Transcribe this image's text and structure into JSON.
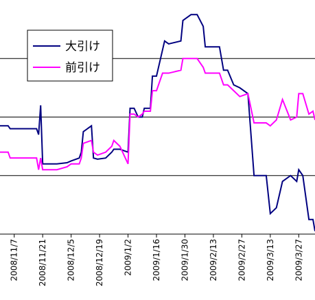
{
  "chart_data": {
    "type": "line",
    "x_tick_labels": [
      "2008/11/7",
      "2008/11/21",
      "2008/12/5",
      "2008/12/19",
      "2009/1/2",
      "2009/1/16",
      "2009/1/30",
      "2009/2/13",
      "2009/2/27",
      "2009/3/13",
      "2009/3/27"
    ],
    "x_start": "2008/10/31",
    "x_end": "2009/4/4",
    "y_range": [
      0,
      4
    ],
    "y_gridlines": [
      1,
      2,
      3
    ],
    "grid": true,
    "legend_position": "top-left",
    "series": [
      {
        "name": "大引け",
        "color": "#000080",
        "points": [
          [
            "2008/10/31",
            1.85
          ],
          [
            "2008/11/4",
            1.85
          ],
          [
            "2008/11/5",
            1.8
          ],
          [
            "2008/11/18",
            1.8
          ],
          [
            "2008/11/19",
            1.7
          ],
          [
            "2008/11/20",
            2.2
          ],
          [
            "2008/11/21",
            1.2
          ],
          [
            "2008/11/28",
            1.2
          ],
          [
            "2008/12/3",
            1.22
          ],
          [
            "2008/12/5",
            1.25
          ],
          [
            "2008/12/9",
            1.3
          ],
          [
            "2008/12/10",
            1.4
          ],
          [
            "2008/12/11",
            1.75
          ],
          [
            "2008/12/15",
            1.85
          ],
          [
            "2008/12/16",
            1.3
          ],
          [
            "2008/12/18",
            1.28
          ],
          [
            "2008/12/22",
            1.3
          ],
          [
            "2008/12/25",
            1.4
          ],
          [
            "2008/12/26",
            1.45
          ],
          [
            "2008/12/29",
            1.45
          ],
          [
            "2009/1/2",
            1.4
          ],
          [
            "2009/1/3",
            2.15
          ],
          [
            "2009/1/5",
            2.15
          ],
          [
            "2009/1/7",
            2.0
          ],
          [
            "2009/1/9",
            2.0
          ],
          [
            "2009/1/10",
            2.15
          ],
          [
            "2009/1/13",
            2.15
          ],
          [
            "2009/1/14",
            2.7
          ],
          [
            "2009/1/16",
            2.7
          ],
          [
            "2009/1/19",
            3.15
          ],
          [
            "2009/1/20",
            3.3
          ],
          [
            "2009/1/22",
            3.25
          ],
          [
            "2009/1/28",
            3.3
          ],
          [
            "2009/1/29",
            3.65
          ],
          [
            "2009/2/2",
            3.75
          ],
          [
            "2009/2/5",
            3.75
          ],
          [
            "2009/2/8",
            3.55
          ],
          [
            "2009/2/9",
            3.2
          ],
          [
            "2009/2/16",
            3.2
          ],
          [
            "2009/2/18",
            2.8
          ],
          [
            "2009/2/20",
            2.8
          ],
          [
            "2009/2/23",
            2.55
          ],
          [
            "2009/2/26",
            2.5
          ],
          [
            "2009/3/2",
            2.4
          ],
          [
            "2009/3/5",
            1.0
          ],
          [
            "2009/3/11",
            1.0
          ],
          [
            "2009/3/13",
            0.35
          ],
          [
            "2009/3/16",
            0.45
          ],
          [
            "2009/3/19",
            0.9
          ],
          [
            "2009/3/23",
            1.0
          ],
          [
            "2009/3/26",
            0.9
          ],
          [
            "2009/3/27",
            1.1
          ],
          [
            "2009/3/29",
            1.0
          ],
          [
            "2009/4/1",
            0.25
          ],
          [
            "2009/4/3",
            0.25
          ],
          [
            "2009/4/4",
            0.05
          ]
        ]
      },
      {
        "name": "前引け",
        "color": "#FF00FF",
        "points": [
          [
            "2008/10/31",
            1.4
          ],
          [
            "2008/11/4",
            1.4
          ],
          [
            "2008/11/5",
            1.3
          ],
          [
            "2008/11/18",
            1.3
          ],
          [
            "2008/11/19",
            1.1
          ],
          [
            "2008/11/20",
            1.3
          ],
          [
            "2008/11/21",
            1.1
          ],
          [
            "2008/11/28",
            1.1
          ],
          [
            "2008/12/3",
            1.15
          ],
          [
            "2008/12/5",
            1.2
          ],
          [
            "2008/12/9",
            1.2
          ],
          [
            "2008/12/10",
            1.3
          ],
          [
            "2008/12/11",
            1.55
          ],
          [
            "2008/12/15",
            1.6
          ],
          [
            "2008/12/16",
            1.4
          ],
          [
            "2008/12/18",
            1.35
          ],
          [
            "2008/12/22",
            1.4
          ],
          [
            "2008/12/25",
            1.5
          ],
          [
            "2008/12/26",
            1.6
          ],
          [
            "2008/12/29",
            1.5
          ],
          [
            "2009/1/2",
            1.2
          ],
          [
            "2009/1/3",
            2.05
          ],
          [
            "2009/1/5",
            2.05
          ],
          [
            "2009/1/7",
            2.0
          ],
          [
            "2009/1/9",
            2.05
          ],
          [
            "2009/1/10",
            2.1
          ],
          [
            "2009/1/13",
            2.1
          ],
          [
            "2009/1/14",
            2.45
          ],
          [
            "2009/1/16",
            2.45
          ],
          [
            "2009/1/19",
            2.75
          ],
          [
            "2009/1/20",
            2.75
          ],
          [
            "2009/1/22",
            2.75
          ],
          [
            "2009/1/28",
            2.8
          ],
          [
            "2009/1/29",
            3.0
          ],
          [
            "2009/2/2",
            3.0
          ],
          [
            "2009/2/5",
            3.0
          ],
          [
            "2009/2/8",
            2.85
          ],
          [
            "2009/2/9",
            2.75
          ],
          [
            "2009/2/16",
            2.75
          ],
          [
            "2009/2/18",
            2.55
          ],
          [
            "2009/2/20",
            2.55
          ],
          [
            "2009/2/23",
            2.45
          ],
          [
            "2009/2/26",
            2.35
          ],
          [
            "2009/3/2",
            2.4
          ],
          [
            "2009/3/5",
            1.9
          ],
          [
            "2009/3/11",
            1.9
          ],
          [
            "2009/3/13",
            1.85
          ],
          [
            "2009/3/16",
            1.95
          ],
          [
            "2009/3/19",
            2.3
          ],
          [
            "2009/3/23",
            1.95
          ],
          [
            "2009/3/26",
            2.0
          ],
          [
            "2009/3/27",
            2.4
          ],
          [
            "2009/3/29",
            2.4
          ],
          [
            "2009/4/1",
            2.05
          ],
          [
            "2009/4/3",
            2.1
          ],
          [
            "2009/4/4",
            1.95
          ]
        ]
      }
    ]
  }
}
